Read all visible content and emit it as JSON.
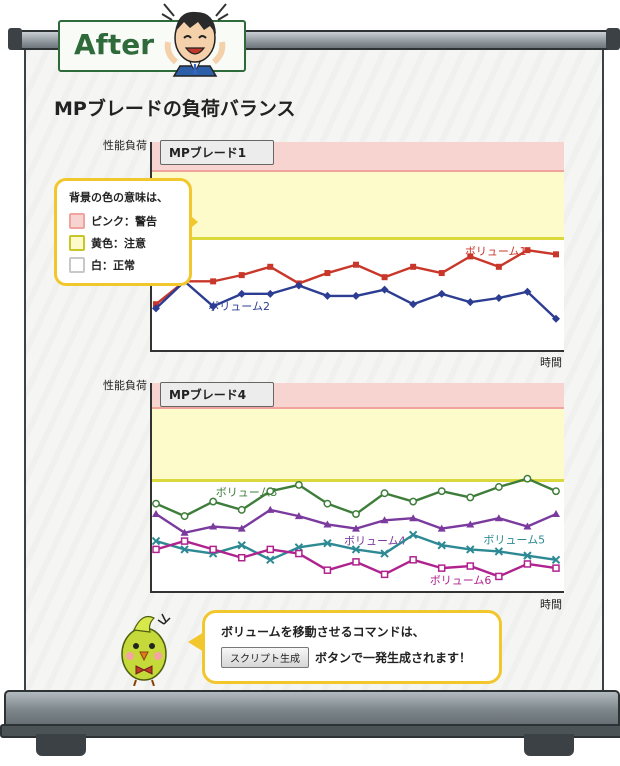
{
  "badge": {
    "label": "After"
  },
  "title": "MPブレードの負荷バランス",
  "charts": [
    {
      "tab": "MPブレード1",
      "ylabel": "性能負荷",
      "xlabel": "時間",
      "series": [
        {
          "name": "ボリューム1",
          "color": "#c8372a",
          "marker": "square"
        },
        {
          "name": "ボリューム2",
          "color": "#2c3d92",
          "marker": "diamond"
        }
      ]
    },
    {
      "tab": "MPブレード4",
      "ylabel": "性能負荷",
      "xlabel": "時間",
      "series": [
        {
          "name": "ボリューム3",
          "color": "#3f7d3a",
          "marker": "circle"
        },
        {
          "name": "ボリューム4",
          "color": "#7a3a9e",
          "marker": "triangle"
        },
        {
          "name": "ボリューム5",
          "color": "#2d8a94",
          "marker": "x"
        },
        {
          "name": "ボリューム6",
          "color": "#b0238f",
          "marker": "square-open"
        }
      ]
    }
  ],
  "chart_data": [
    {
      "type": "line",
      "x": [
        1,
        2,
        3,
        4,
        5,
        6,
        7,
        8,
        9,
        10,
        11,
        12,
        13,
        14,
        15
      ],
      "series": [
        {
          "name": "ボリューム1",
          "values": [
            22,
            33,
            33,
            36,
            40,
            32,
            37,
            41,
            35,
            40,
            37,
            45,
            40,
            48,
            46
          ]
        },
        {
          "name": "ボリューム2",
          "values": [
            20,
            33,
            21,
            27,
            27,
            31,
            26,
            26,
            29,
            22,
            27,
            23,
            25,
            28,
            15
          ]
        }
      ],
      "zones": {
        "warning_start": 78,
        "caution_start": 50
      },
      "ylim": [
        0,
        100
      ]
    },
    {
      "type": "line",
      "x": [
        1,
        2,
        3,
        4,
        5,
        6,
        7,
        8,
        9,
        10,
        11,
        12,
        13,
        14,
        15
      ],
      "series": [
        {
          "name": "ボリューム3",
          "values": [
            42,
            36,
            43,
            39,
            48,
            51,
            42,
            37,
            47,
            43,
            48,
            45,
            50,
            54,
            48
          ]
        },
        {
          "name": "ボリューム4",
          "values": [
            37,
            28,
            31,
            30,
            39,
            36,
            32,
            30,
            34,
            35,
            30,
            32,
            35,
            31,
            37
          ]
        },
        {
          "name": "ボリューム5",
          "values": [
            24,
            20,
            18,
            22,
            15,
            21,
            23,
            20,
            18,
            27,
            22,
            20,
            19,
            17,
            15
          ]
        },
        {
          "name": "ボリューム6",
          "values": [
            20,
            24,
            20,
            16,
            20,
            18,
            10,
            14,
            8,
            15,
            11,
            12,
            7,
            13,
            11
          ]
        }
      ],
      "zones": {
        "warning_start": 88,
        "caution_start": 64
      },
      "ylim": [
        0,
        100
      ]
    }
  ],
  "legend": {
    "title": "背景の色の意味は、",
    "items": [
      {
        "label": "ピンク：警告",
        "color": "#f1a3a0"
      },
      {
        "label": "黄色：注意",
        "color": "#c9c62a"
      },
      {
        "label": "白：正常",
        "color": "#c8c8c8"
      }
    ]
  },
  "tip": {
    "line1": "ボリュームを移動させるコマンドは、",
    "button_label": "スクリプト生成",
    "line2_suffix": "ボタンで一発生成されます！"
  }
}
